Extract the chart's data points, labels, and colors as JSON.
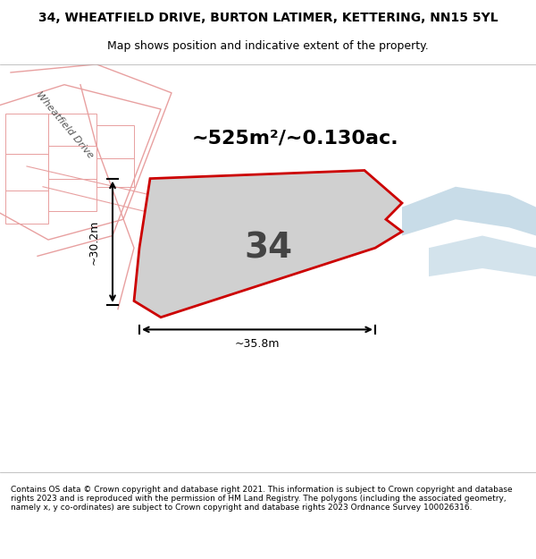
{
  "title": "34, WHEATFIELD DRIVE, BURTON LATIMER, KETTERING, NN15 5YL",
  "subtitle": "Map shows position and indicative extent of the property.",
  "area_text": "~525m²/~0.130ac.",
  "property_number": "34",
  "dim_width": "~35.8m",
  "dim_height": "~30.2m",
  "footer": "Contains OS data © Crown copyright and database right 2021. This information is subject to Crown copyright and database rights 2023 and is reproduced with the permission of HM Land Registry. The polygons (including the associated geometry, namely x, y co-ordinates) are subject to Crown copyright and database rights 2023 Ordnance Survey 100026316.",
  "bg_color": "#f0ede8",
  "map_bg": "#f0ede8",
  "road_color": "#ffffff",
  "road_line_color": "#e8a0a0",
  "property_fill": "#d0d0d0",
  "property_edge": "#cc0000",
  "water_color": "#c8dce8",
  "road_label": "Wheatfield Drive",
  "footer_bg": "#ffffff",
  "title_bg": "#ffffff"
}
